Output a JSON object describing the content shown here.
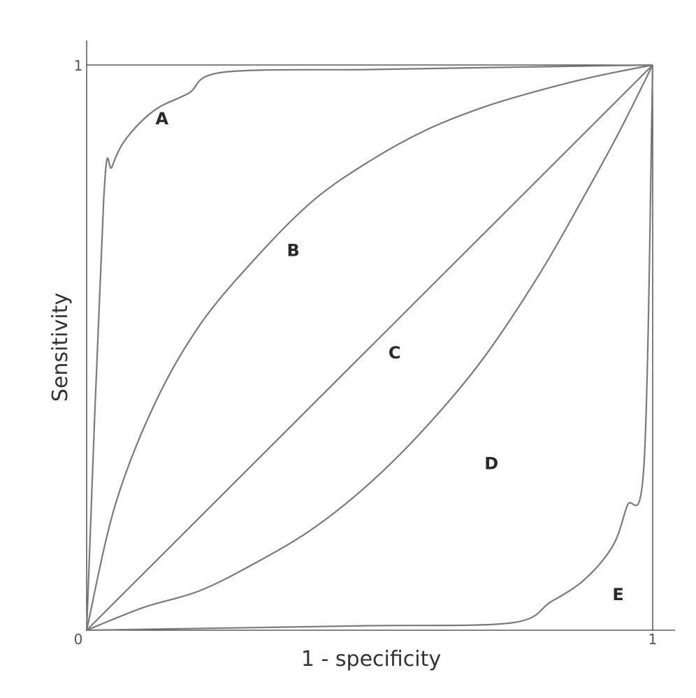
{
  "chart_data": {
    "type": "line",
    "xlabel": "1 - specificity",
    "ylabel": "Sensitivity",
    "xlim": [
      0,
      1
    ],
    "ylim": [
      0,
      1
    ],
    "x_ticks": [
      "0",
      "1"
    ],
    "y_ticks": [
      "1"
    ],
    "grid": false,
    "series": [
      {
        "name": "A",
        "x": [
          0,
          0.03,
          0.045,
          0.07,
          0.12,
          0.18,
          0.24,
          0.5,
          0.75,
          1.0
        ],
        "y": [
          0,
          0.76,
          0.82,
          0.87,
          0.92,
          0.95,
          0.987,
          0.992,
          0.996,
          1.0
        ]
      },
      {
        "name": "B",
        "x": [
          0,
          0.05,
          0.12,
          0.2,
          0.3,
          0.4,
          0.5,
          0.6,
          0.7,
          0.8,
          0.9,
          1.0
        ],
        "y": [
          0,
          0.22,
          0.4,
          0.54,
          0.66,
          0.76,
          0.83,
          0.885,
          0.925,
          0.955,
          0.98,
          1.0
        ]
      },
      {
        "name": "C",
        "x": [
          0,
          1
        ],
        "y": [
          0,
          1
        ]
      },
      {
        "name": "D",
        "x": [
          0,
          0.1,
          0.2,
          0.3,
          0.4,
          0.5,
          0.6,
          0.7,
          0.8,
          0.88,
          0.94,
          1.0
        ],
        "y": [
          0,
          0.04,
          0.07,
          0.12,
          0.18,
          0.26,
          0.36,
          0.48,
          0.63,
          0.77,
          0.88,
          1.0
        ]
      },
      {
        "name": "E",
        "x": [
          0,
          0.25,
          0.5,
          0.75,
          0.82,
          0.88,
          0.93,
          0.955,
          0.985,
          1.0
        ],
        "y": [
          0,
          0.004,
          0.008,
          0.013,
          0.05,
          0.09,
          0.15,
          0.22,
          0.3,
          1.0
        ]
      }
    ],
    "curve_labels": [
      {
        "text": "A",
        "x": 0.133,
        "y": 0.905
      },
      {
        "text": "B",
        "x": 0.365,
        "y": 0.672
      },
      {
        "text": "C",
        "x": 0.544,
        "y": 0.491
      },
      {
        "text": "D",
        "x": 0.715,
        "y": 0.295
      },
      {
        "text": "E",
        "x": 0.939,
        "y": 0.063
      }
    ]
  }
}
